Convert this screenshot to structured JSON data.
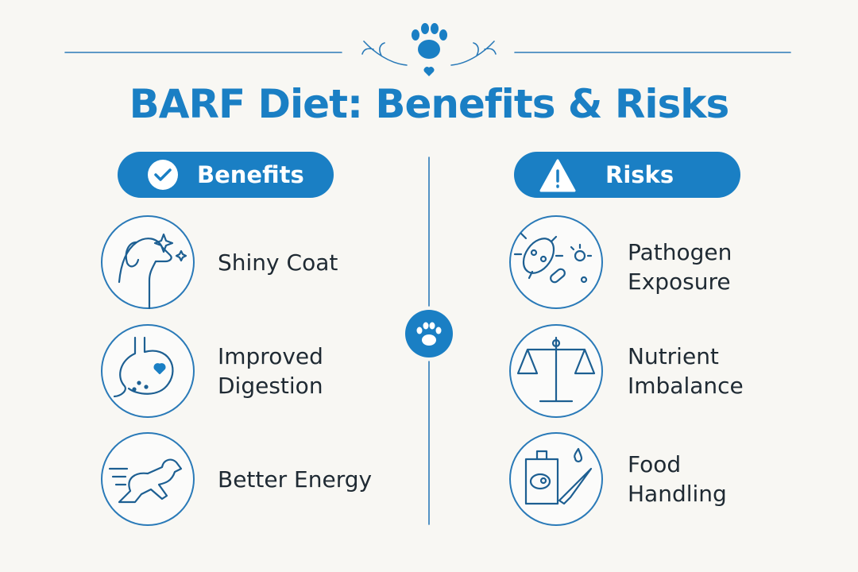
{
  "header": {
    "title": "BARF Diet: Benefits & Risks"
  },
  "benefits": {
    "heading": "Benefits",
    "items": [
      "Shiny Coat",
      "Improved Digestion",
      "Better Energy"
    ]
  },
  "risks": {
    "heading": "Risks",
    "items": [
      "Pathogen Exposure",
      "Nutrient Imbalance",
      "Food Handling"
    ]
  }
}
